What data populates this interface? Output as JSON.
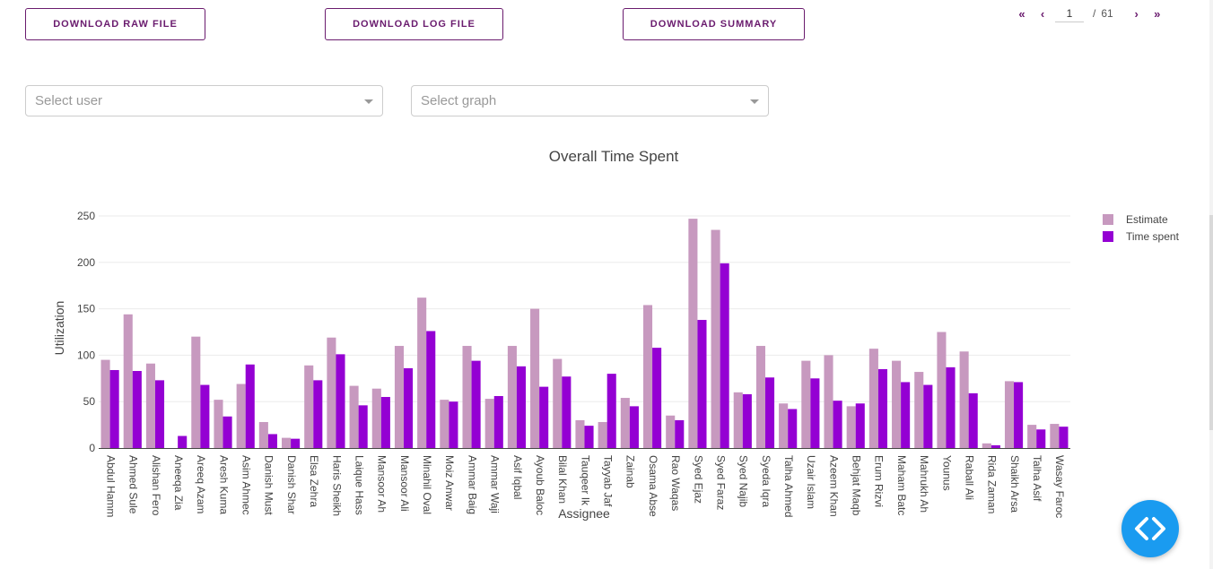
{
  "toolbar": {
    "download_raw": "DOWNLOAD RAW FILE",
    "download_log": "DOWNLOAD LOG FILE",
    "download_summary": "DOWNLOAD SUMMARY"
  },
  "pagination": {
    "current": "1",
    "separator": "/",
    "total": "61"
  },
  "filters": {
    "user_placeholder": "Select user",
    "graph_placeholder": "Select graph"
  },
  "colors": {
    "accent": "#6a1b6e",
    "estimate": "#c799bf",
    "time_spent": "#9400d3",
    "fab": "#1a9bf0"
  },
  "chart_data": {
    "type": "bar",
    "title": "Overall Time Spent",
    "xlabel": "Assignee",
    "ylabel": "Utilization",
    "ylim": [
      0,
      260
    ],
    "yticks": [
      0,
      50,
      100,
      150,
      200,
      250
    ],
    "grid": true,
    "legend_position": "top-right",
    "categories": [
      "Abdul Hamm",
      "Ahmed Sule",
      "Alishan Fero",
      "Aneeqa Zia",
      "Areeq Azam",
      "Aresh Kuma",
      "Asim Ahmec",
      "Danish Must",
      "Danish Shar",
      "Elsa Zehra",
      "Haris Sheikh",
      "Laique Hass",
      "Mansoor Ah",
      "Mansoor Ali",
      "Minahil Oval",
      "Moiz Anwar",
      "Ammar Baig",
      "Ammar Waji",
      "Asif Iqbal",
      "Ayoub Baloc",
      "Bilal Khan",
      "Tauqeer Ik",
      "Tayyab Jaf",
      "Zainab",
      "Osama Abse",
      "Rao Waqas",
      "Syed Ejaz",
      "Syed Faraz",
      "Syed Najib",
      "Syeda Iqra",
      "Talha Ahmed",
      "Uzair Islam",
      "Azeem Khan",
      "Behjat Maqb",
      "Erum Rizvi",
      "Maham Batc",
      "Mahrukh Ah",
      "Younus",
      "Raball Ali",
      "Rida Zaman",
      "Shaikh Arsa",
      "Talha Asif",
      "Wasay Faroc"
    ],
    "series": [
      {
        "name": "Estimate",
        "color": "#c799bf",
        "values": [
          95,
          144,
          91,
          0,
          120,
          52,
          69,
          28,
          11,
          89,
          119,
          67,
          64,
          110,
          162,
          52,
          110,
          53,
          110,
          150,
          96,
          30,
          28,
          54,
          154,
          35,
          247,
          235,
          60,
          110,
          48,
          94,
          100,
          45,
          107,
          94,
          82,
          125,
          104,
          5,
          72,
          25,
          26
        ]
      },
      {
        "name": "Time spent",
        "color": "#9400d3",
        "values": [
          84,
          83,
          73,
          13,
          68,
          34,
          90,
          15,
          10,
          73,
          101,
          46,
          55,
          86,
          126,
          50,
          94,
          56,
          88,
          66,
          77,
          24,
          80,
          45,
          108,
          30,
          138,
          199,
          58,
          76,
          42,
          75,
          51,
          48,
          85,
          71,
          68,
          87,
          59,
          3,
          71,
          20,
          23
        ]
      }
    ]
  }
}
